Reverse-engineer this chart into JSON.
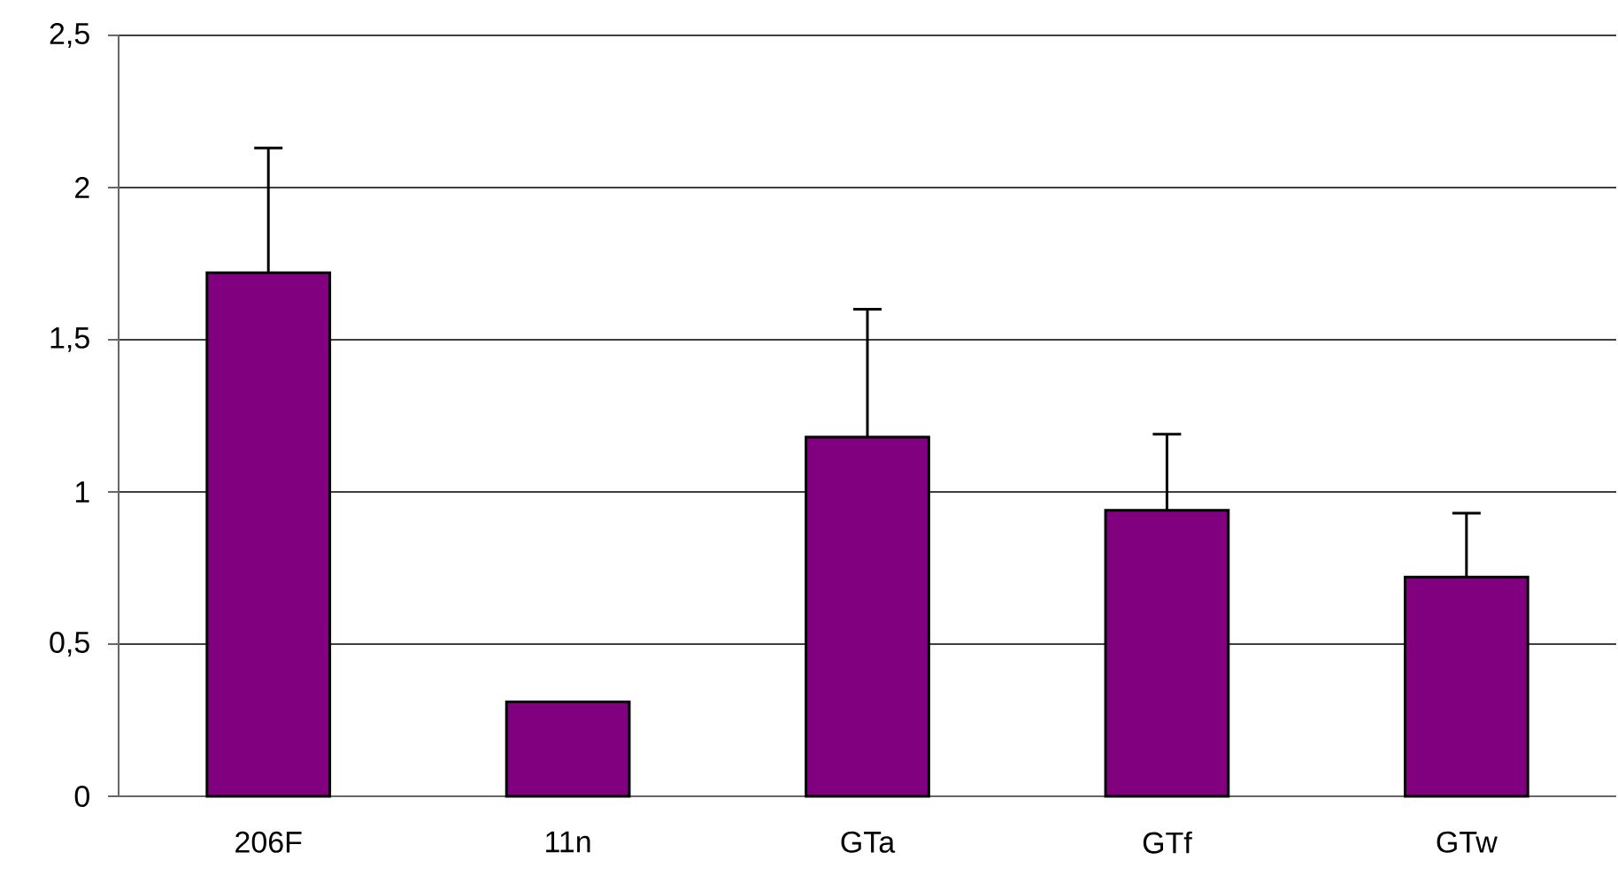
{
  "chart_data": {
    "type": "bar",
    "categories": [
      "206F",
      "11n",
      "GTa",
      "GTf",
      "GTw"
    ],
    "values": [
      1.72,
      0.31,
      1.18,
      0.94,
      0.72
    ],
    "errors": [
      [
        1.72,
        2.13
      ],
      null,
      [
        1.18,
        1.6
      ],
      [
        0.94,
        1.19
      ],
      [
        0.72,
        0.93
      ]
    ],
    "color": "#800080",
    "ylim": [
      0,
      2.5
    ],
    "yticks": [
      0,
      {
        "value": 0.5,
        "label": "0,5"
      },
      1,
      {
        "value": 1.5,
        "label": "1,5"
      },
      2,
      {
        "value": 2.5,
        "label": "2,5"
      }
    ],
    "grid": "y"
  }
}
